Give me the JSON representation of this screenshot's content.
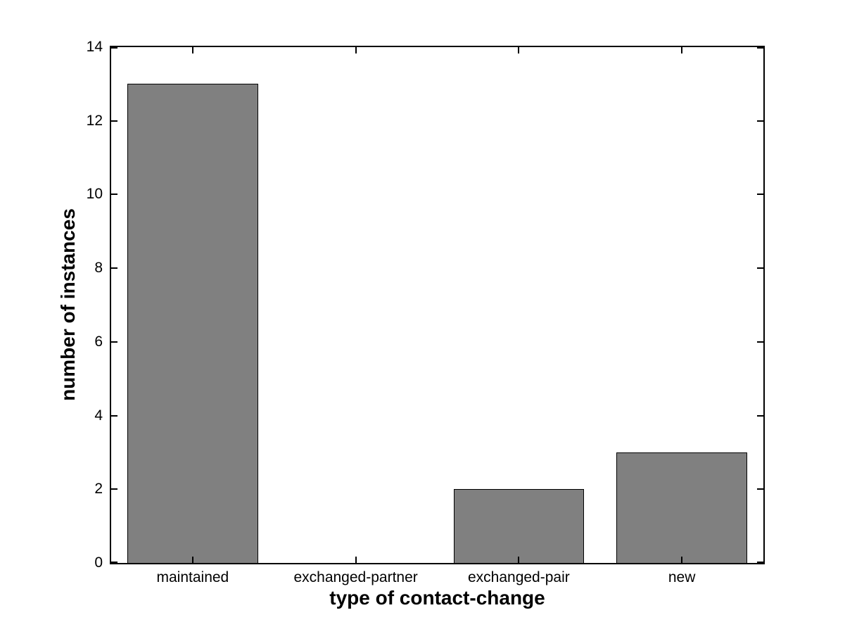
{
  "chart_data": {
    "type": "bar",
    "title": "",
    "categories": [
      "maintained",
      "exchanged-partner",
      "exchanged-pair",
      "new"
    ],
    "values": [
      13,
      0,
      2,
      3
    ],
    "xlabel": "type of contact-change",
    "ylabel": "number of instances",
    "ylim": [
      0,
      14
    ],
    "yticks": [
      0,
      2,
      4,
      6,
      8,
      10,
      12,
      14
    ],
    "bar_width_fraction": 0.8,
    "grid": false,
    "legend": "none",
    "tick_direction": "in",
    "box": true,
    "colors": {
      "bar_fill": "#808080",
      "bar_edge": "#000000",
      "axis": "#000000",
      "background": "#ffffff",
      "text": "#000000"
    }
  }
}
